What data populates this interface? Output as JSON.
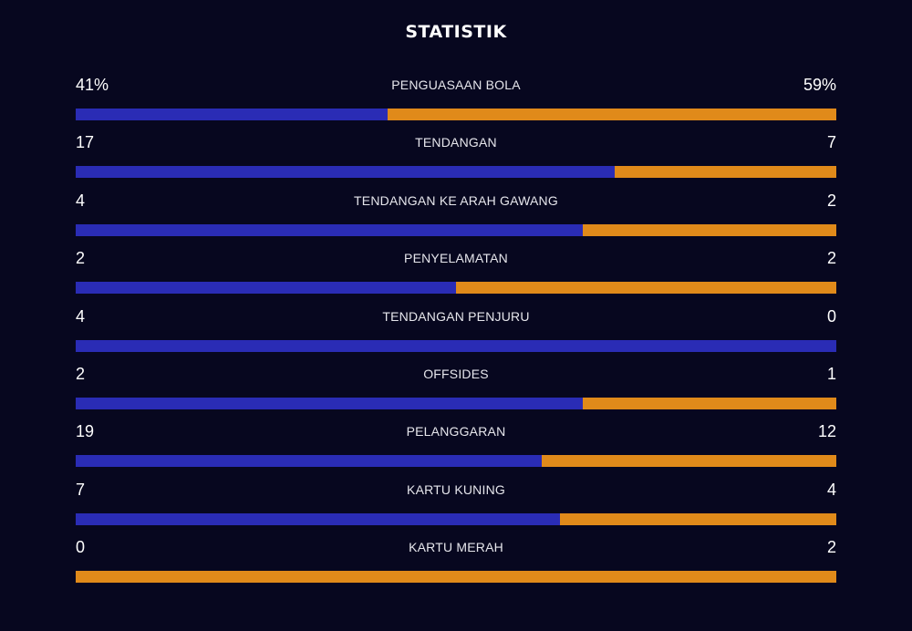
{
  "title": "STATISTIK",
  "colors": {
    "background": "#07071f",
    "home": "#2a2cb5",
    "away": "#e08a1a"
  },
  "stats": [
    {
      "label": "PENGUASAAN BOLA",
      "home_display": "41%",
      "away_display": "59%",
      "home": 41,
      "away": 59
    },
    {
      "label": "TENDANGAN",
      "home_display": "17",
      "away_display": "7",
      "home": 17,
      "away": 7
    },
    {
      "label": "TENDANGAN KE ARAH GAWANG",
      "home_display": "4",
      "away_display": "2",
      "home": 4,
      "away": 2
    },
    {
      "label": "PENYELAMATAN",
      "home_display": "2",
      "away_display": "2",
      "home": 2,
      "away": 2
    },
    {
      "label": "TENDANGAN PENJURU",
      "home_display": "4",
      "away_display": "0",
      "home": 4,
      "away": 0
    },
    {
      "label": "OFFSIDES",
      "home_display": "2",
      "away_display": "1",
      "home": 2,
      "away": 1
    },
    {
      "label": "PELANGGARAN",
      "home_display": "19",
      "away_display": "12",
      "home": 19,
      "away": 12
    },
    {
      "label": "KARTU KUNING",
      "home_display": "7",
      "away_display": "4",
      "home": 7,
      "away": 4
    },
    {
      "label": "KARTU MERAH",
      "home_display": "0",
      "away_display": "2",
      "home": 0,
      "away": 2
    }
  ]
}
